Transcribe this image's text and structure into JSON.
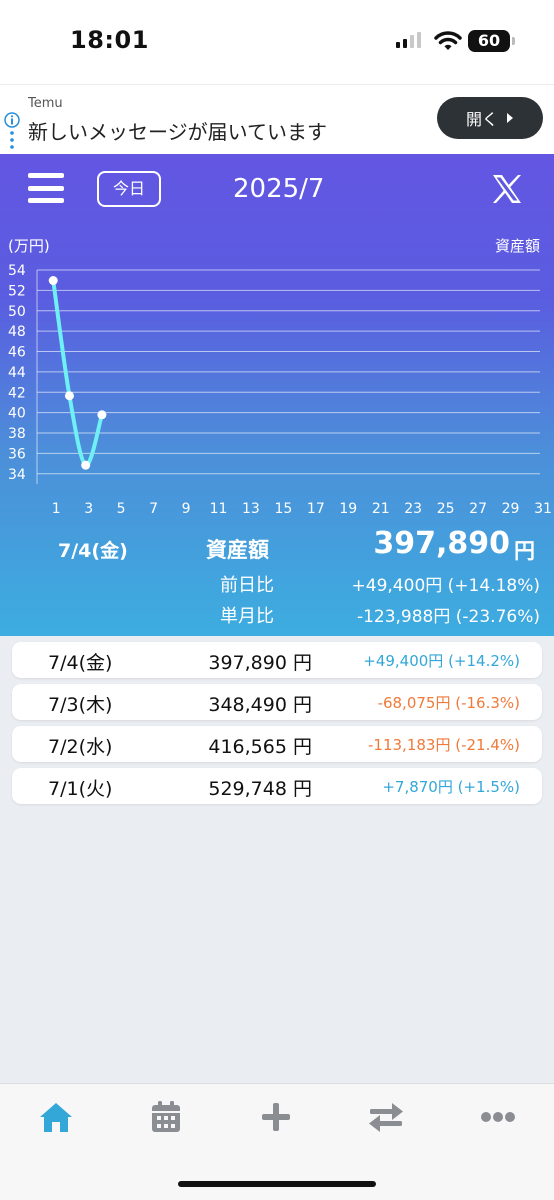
{
  "status_bar": {
    "time": "18:01",
    "battery": "60"
  },
  "ad": {
    "advertiser": "Temu",
    "message": "新しいメッセージが届いています",
    "button_label": "開く"
  },
  "header": {
    "today_label": "今日",
    "month": "2025/7"
  },
  "chart_data": {
    "type": "line",
    "y_unit_label": "(万円)",
    "series_label": "資産額",
    "x": [
      1,
      2,
      3,
      4
    ],
    "values": [
      52.97,
      41.66,
      34.85,
      39.79
    ],
    "x_ticks": [
      1,
      3,
      5,
      7,
      9,
      11,
      13,
      15,
      17,
      19,
      21,
      23,
      25,
      27,
      29,
      31
    ],
    "y_ticks": [
      34,
      36,
      38,
      40,
      42,
      44,
      46,
      48,
      50,
      52,
      54
    ],
    "xlim": [
      0,
      31
    ],
    "ylim": [
      33,
      54
    ],
    "grid": true,
    "line_color": "#6ff0f5"
  },
  "selected": {
    "date": "7/4(金)",
    "label": "資産額",
    "amount": "397,890",
    "unit": "円",
    "prev_day_label": "前日比",
    "prev_day_value": "+49,400円 (+14.18%)",
    "month_label": "単月比",
    "month_value": "-123,988円 (-23.76%)"
  },
  "rows": [
    {
      "date": "7/4(金)",
      "amount": "397,890 円",
      "change": "+49,400円 (+14.2%)",
      "color": "#33a7d8"
    },
    {
      "date": "7/3(木)",
      "amount": "348,490 円",
      "change": "-68,075円 (-16.3%)",
      "color": "#f07a3a"
    },
    {
      "date": "7/2(水)",
      "amount": "416,565 円",
      "change": "-113,183円 (-21.4%)",
      "color": "#f07a3a"
    },
    {
      "date": "7/1(火)",
      "amount": "529,748 円",
      "change": "+7,870円 (+1.5%)",
      "color": "#33a7d8"
    }
  ],
  "tabs": [
    {
      "name": "home-icon",
      "active": true
    },
    {
      "name": "calendar-icon",
      "active": false
    },
    {
      "name": "add-icon",
      "active": false
    },
    {
      "name": "transfer-icon",
      "active": false
    },
    {
      "name": "more-icon",
      "active": false
    }
  ],
  "colors": {
    "accent": "#33a7d8",
    "negative": "#f07a3a",
    "header_top": "#6356e2",
    "header_bottom": "#3dade0"
  }
}
